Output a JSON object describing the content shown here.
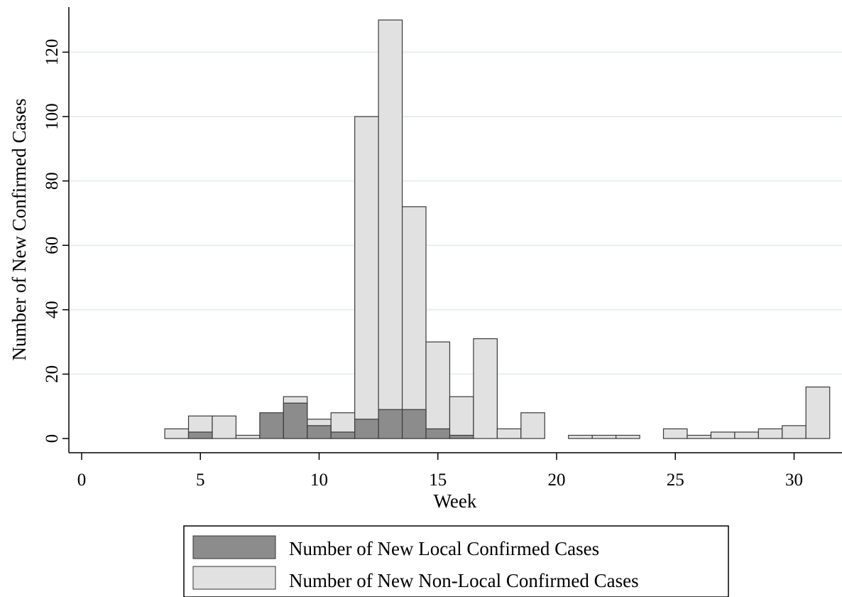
{
  "chart_data": {
    "type": "bar",
    "stacking": "overlay",
    "xlabel": "Week",
    "ylabel": "Number of New Confirmed Cases",
    "xlim": [
      0,
      32
    ],
    "ylim": [
      0,
      135
    ],
    "xticks": [
      0,
      5,
      10,
      15,
      20,
      25,
      30
    ],
    "yticks": [
      0,
      20,
      40,
      60,
      80,
      100,
      120
    ],
    "grid": "horizontal",
    "legend_position": "bottom",
    "series": [
      {
        "name": "Number of New Non-Local Confirmed Cases",
        "color": "#e1e1e1",
        "x": [
          4,
          5,
          6,
          7,
          8,
          9,
          10,
          11,
          12,
          13,
          14,
          15,
          16,
          17,
          18,
          19,
          21,
          22,
          23,
          25,
          26,
          27,
          28,
          29,
          30,
          31
        ],
        "values": [
          3,
          7,
          7,
          1,
          0,
          13,
          6,
          8,
          100,
          130,
          72,
          30,
          13,
          31,
          3,
          8,
          1,
          1,
          1,
          3,
          1,
          2,
          2,
          3,
          4,
          16
        ]
      },
      {
        "name": "Number of New Local Confirmed Cases",
        "color": "#8c8c8c",
        "x": [
          5,
          8,
          9,
          10,
          11,
          12,
          13,
          14,
          15,
          16
        ],
        "values": [
          2,
          8,
          11,
          4,
          2,
          6,
          9,
          9,
          3,
          1
        ]
      }
    ],
    "legend": [
      {
        "label": "Number of New Local Confirmed Cases",
        "color": "#8c8c8c"
      },
      {
        "label": "Number of New Non-Local Confirmed Cases",
        "color": "#e1e1e1"
      }
    ]
  }
}
